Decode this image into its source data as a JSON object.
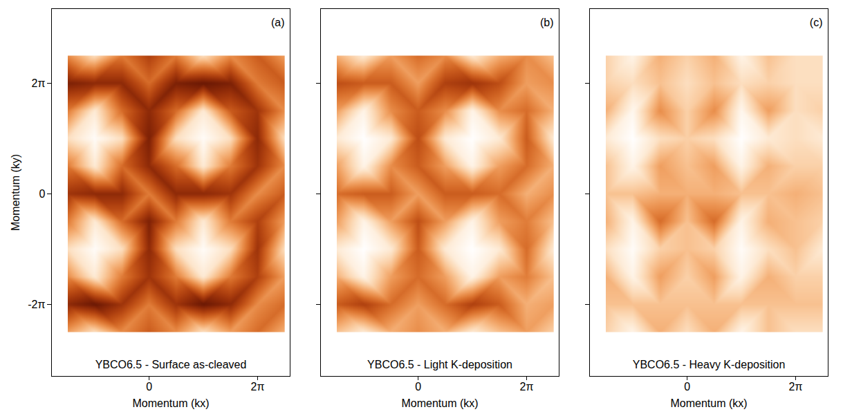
{
  "chart_data": [
    {
      "type": "heatmap",
      "title": "(a)",
      "annotation": "YBCO6.5 - Surface as-cleaved",
      "x_label": "Momentum (kx)",
      "y_label": "Momentum (ky)",
      "xlim": [
        -1.8,
        2.6
      ],
      "ylim": [
        -3.3,
        3.35
      ],
      "xticks": [
        0,
        {
          "value": 2,
          "label": "2π"
        }
      ],
      "yticks": [
        {
          "value": -2,
          "label": "-2π"
        },
        0,
        {
          "value": 2,
          "label": "2π"
        }
      ],
      "tick_labels": true,
      "x": [
        -1.5,
        -1,
        -0.5,
        0,
        0.5,
        1,
        1.5,
        2,
        2.5
      ],
      "y": [
        2.5,
        2,
        1.5,
        1,
        0.5,
        0,
        -0.5,
        -1,
        -1.5,
        -2,
        -2.5
      ],
      "values": [
        [
          0.45,
          0.2,
          0.5,
          0.7,
          0.5,
          0.2,
          0.45,
          0.6,
          0.4
        ],
        [
          0.85,
          0.8,
          0.8,
          0.55,
          0.85,
          0.9,
          0.85,
          0.5,
          0.6
        ],
        [
          0.5,
          0.15,
          0.55,
          0.8,
          0.55,
          0.15,
          0.6,
          0.75,
          0.45
        ],
        [
          0.2,
          0.05,
          0.2,
          0.85,
          0.2,
          0.05,
          0.2,
          0.8,
          0.2
        ],
        [
          0.5,
          0.15,
          0.55,
          0.8,
          0.55,
          0.15,
          0.5,
          0.75,
          0.45
        ],
        [
          0.75,
          0.8,
          0.8,
          0.5,
          0.8,
          0.8,
          0.75,
          0.45,
          0.6
        ],
        [
          0.5,
          0.15,
          0.55,
          0.85,
          0.5,
          0.15,
          0.5,
          0.7,
          0.4
        ],
        [
          0.2,
          0.05,
          0.2,
          0.8,
          0.2,
          0.05,
          0.2,
          0.75,
          0.2
        ],
        [
          0.45,
          0.15,
          0.5,
          0.75,
          0.5,
          0.15,
          0.5,
          0.7,
          0.4
        ],
        [
          0.8,
          0.9,
          0.75,
          0.5,
          0.75,
          0.9,
          0.8,
          0.45,
          0.55
        ],
        [
          0.4,
          0.2,
          0.45,
          0.6,
          0.45,
          0.2,
          0.4,
          0.55,
          0.35
        ]
      ]
    },
    {
      "type": "heatmap",
      "title": "(b)",
      "annotation": "YBCO6.5 - Light K-deposition",
      "x_label": "Momentum (kx)",
      "xlim": [
        -1.8,
        2.6
      ],
      "ylim": [
        -3.3,
        3.35
      ],
      "xticks": [
        0,
        {
          "value": 2,
          "label": "2π"
        }
      ],
      "yticks": [
        -2,
        0,
        2
      ],
      "tick_labels": "x",
      "x": [
        -1.5,
        -1,
        -0.5,
        0,
        0.5,
        1,
        1.5,
        2,
        2.5
      ],
      "y": [
        2.5,
        2,
        1.5,
        1,
        0.5,
        0,
        -0.5,
        -1,
        -1.5,
        -2,
        -2.5
      ],
      "values": [
        [
          0.35,
          0.15,
          0.4,
          0.55,
          0.45,
          0.15,
          0.35,
          0.45,
          0.3
        ],
        [
          0.65,
          0.6,
          0.6,
          0.4,
          0.7,
          0.75,
          0.65,
          0.4,
          0.45
        ],
        [
          0.4,
          0.1,
          0.45,
          0.6,
          0.45,
          0.1,
          0.45,
          0.55,
          0.35
        ],
        [
          0.15,
          0.03,
          0.15,
          0.65,
          0.15,
          0.03,
          0.15,
          0.6,
          0.15
        ],
        [
          0.4,
          0.1,
          0.45,
          0.6,
          0.4,
          0.1,
          0.4,
          0.55,
          0.35
        ],
        [
          0.55,
          0.6,
          0.6,
          0.4,
          0.6,
          0.6,
          0.55,
          0.35,
          0.45
        ],
        [
          0.4,
          0.1,
          0.4,
          0.65,
          0.4,
          0.1,
          0.4,
          0.5,
          0.3
        ],
        [
          0.15,
          0.03,
          0.15,
          0.6,
          0.15,
          0.03,
          0.15,
          0.55,
          0.15
        ],
        [
          0.35,
          0.1,
          0.4,
          0.55,
          0.4,
          0.1,
          0.4,
          0.5,
          0.3
        ],
        [
          0.6,
          0.7,
          0.55,
          0.4,
          0.55,
          0.7,
          0.6,
          0.35,
          0.4
        ],
        [
          0.3,
          0.15,
          0.35,
          0.45,
          0.35,
          0.15,
          0.3,
          0.4,
          0.25
        ]
      ]
    },
    {
      "type": "heatmap",
      "title": "(c)",
      "annotation": "YBCO6.5 - Heavy K-deposition",
      "x_label": "Momentum (kx)",
      "xlim": [
        -1.8,
        2.6
      ],
      "ylim": [
        -3.3,
        3.35
      ],
      "xticks": [
        0,
        {
          "value": 2,
          "label": "2π"
        }
      ],
      "yticks": [
        -2,
        0,
        2
      ],
      "tick_labels": "x",
      "x": [
        -1.5,
        -1,
        -0.5,
        0,
        0.5,
        1,
        1.5,
        2,
        2.5
      ],
      "y": [
        2.5,
        2,
        1.5,
        1,
        0.5,
        0,
        -0.5,
        -1,
        -1.5,
        -2,
        -2.5
      ],
      "values": [
        [
          0.25,
          0.1,
          0.35,
          0.25,
          0.35,
          0.1,
          0.3,
          0.2,
          0.2
        ],
        [
          0.25,
          0.2,
          0.3,
          0.2,
          0.3,
          0.2,
          0.25,
          0.2,
          0.2
        ],
        [
          0.35,
          0.08,
          0.45,
          0.25,
          0.45,
          0.08,
          0.4,
          0.2,
          0.25
        ],
        [
          0.15,
          0.03,
          0.2,
          0.25,
          0.2,
          0.03,
          0.15,
          0.2,
          0.15
        ],
        [
          0.3,
          0.1,
          0.4,
          0.3,
          0.4,
          0.1,
          0.35,
          0.25,
          0.25
        ],
        [
          0.3,
          0.3,
          0.35,
          0.35,
          0.35,
          0.3,
          0.3,
          0.35,
          0.3
        ],
        [
          0.35,
          0.1,
          0.55,
          0.3,
          0.55,
          0.1,
          0.35,
          0.3,
          0.25
        ],
        [
          0.2,
          0.05,
          0.25,
          0.3,
          0.25,
          0.05,
          0.2,
          0.3,
          0.15
        ],
        [
          0.35,
          0.1,
          0.4,
          0.25,
          0.4,
          0.1,
          0.35,
          0.25,
          0.25
        ],
        [
          0.3,
          0.3,
          0.3,
          0.3,
          0.3,
          0.3,
          0.3,
          0.3,
          0.3
        ],
        [
          0.25,
          0.1,
          0.35,
          0.2,
          0.35,
          0.1,
          0.3,
          0.2,
          0.2
        ]
      ]
    }
  ]
}
